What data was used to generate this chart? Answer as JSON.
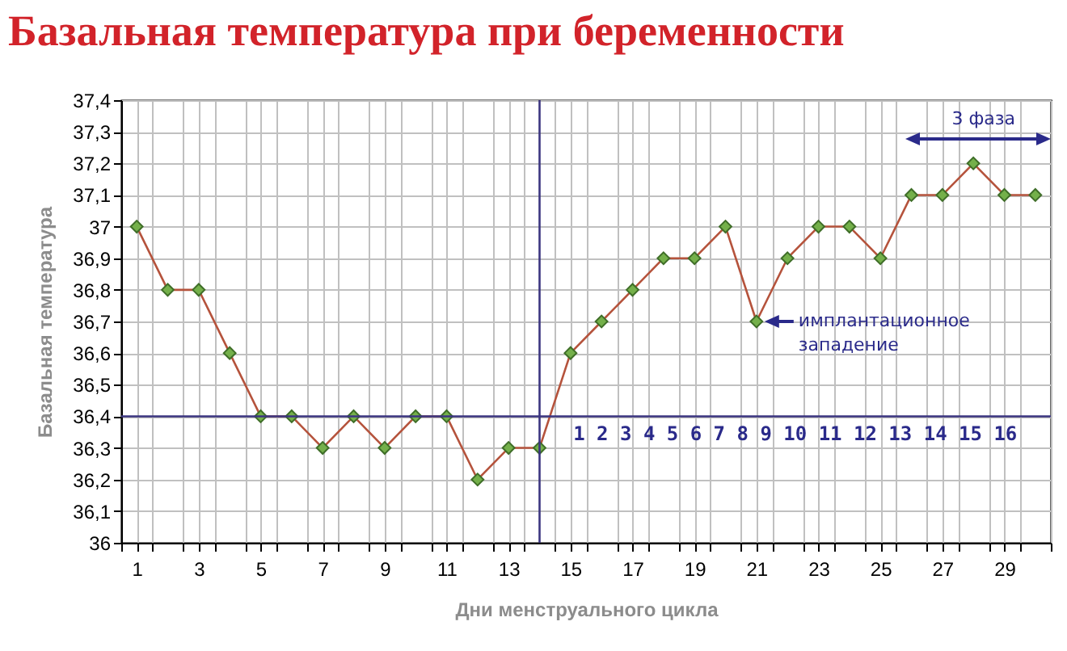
{
  "chart_data": {
    "type": "line",
    "title": "Базальная температура при беременности",
    "xlabel": "Дни менструального цикла",
    "ylabel": "Базальная температура",
    "x": [
      1,
      2,
      3,
      4,
      5,
      6,
      7,
      8,
      9,
      10,
      11,
      12,
      13,
      14,
      15,
      16,
      17,
      18,
      19,
      20,
      21,
      22,
      23,
      24,
      25,
      26,
      27,
      28,
      29,
      30
    ],
    "series": [
      {
        "color": "#b5533c",
        "values": [
          37.0,
          36.8,
          36.8,
          36.6,
          36.4,
          36.4,
          36.3,
          36.4,
          36.3,
          36.4,
          36.4,
          36.2,
          36.3,
          36.3,
          36.6,
          36.7,
          36.8,
          36.9,
          36.9,
          37.0,
          36.7,
          36.9,
          37.0,
          37.0,
          36.9,
          37.1,
          37.1,
          37.2,
          37.1,
          37.1
        ]
      }
    ],
    "xlim": [
      0.5,
      30.5
    ],
    "xticks": [
      {
        "value": 0.5,
        "label": null
      },
      1,
      {
        "value": 1.5,
        "label": null
      },
      {
        "value": 2.5,
        "label": null
      },
      3,
      {
        "value": 3.5,
        "label": null
      },
      {
        "value": 4.5,
        "label": null
      },
      5,
      {
        "value": 5.5,
        "label": null
      },
      {
        "value": 6.5,
        "label": null
      },
      7,
      {
        "value": 7.5,
        "label": null
      },
      {
        "value": 8.5,
        "label": null
      },
      9,
      {
        "value": 9.5,
        "label": null
      },
      {
        "value": 10.5,
        "label": null
      },
      11,
      {
        "value": 11.5,
        "label": null
      },
      {
        "value": 12.5,
        "label": null
      },
      13,
      {
        "value": 13.5,
        "label": null
      },
      {
        "value": 14.5,
        "label": null
      },
      15,
      {
        "value": 15.5,
        "label": null
      },
      {
        "value": 16.5,
        "label": null
      },
      17,
      {
        "value": 17.5,
        "label": null
      },
      {
        "value": 18.5,
        "label": null
      },
      19,
      {
        "value": 19.5,
        "label": null
      },
      {
        "value": 20.5,
        "label": null
      },
      21,
      {
        "value": 21.5,
        "label": null
      },
      {
        "value": 22.5,
        "label": null
      },
      23,
      {
        "value": 23.5,
        "label": null
      },
      {
        "value": 24.5,
        "label": null
      },
      25,
      {
        "value": 25.5,
        "label": null
      },
      {
        "value": 26.5,
        "label": null
      },
      27,
      {
        "value": 27.5,
        "label": null
      },
      {
        "value": 28.5,
        "label": null
      },
      29,
      {
        "value": 29.5,
        "label": null
      },
      {
        "value": 30.5,
        "label": null
      }
    ],
    "ylim": [
      36,
      37.4
    ],
    "yticks": [
      36,
      {
        "value": 36.1,
        "label": "36,1"
      },
      {
        "value": 36.2,
        "label": "36,2"
      },
      {
        "value": 36.3,
        "label": "36,3"
      },
      {
        "value": 36.4,
        "label": "36,4"
      },
      {
        "value": 36.5,
        "label": "36,5"
      },
      {
        "value": 36.6,
        "label": "36,6"
      },
      {
        "value": 36.7,
        "label": "36,7"
      },
      {
        "value": 36.8,
        "label": "36,8"
      },
      {
        "value": 36.9,
        "label": "36,9"
      },
      37,
      {
        "value": 37.1,
        "label": "37,1"
      },
      {
        "value": 37.2,
        "label": "37,2"
      },
      {
        "value": 37.3,
        "label": "37,3"
      },
      {
        "value": 37.4,
        "label": "37,4"
      }
    ],
    "grid": true,
    "marker": "diamond",
    "line_style": "solid",
    "ref_lines": [
      {
        "axis": "x",
        "value": 14,
        "color": "#3b3580"
      },
      {
        "axis": "y",
        "value": 36.4,
        "color": "#3b3580"
      }
    ],
    "annotations": [
      "3 фаза",
      {
        "text": "имплантационное\nзападение",
        "x": 21,
        "y": 36.7
      },
      "1 2 3 4 5 6 7 8 9 10 11 12 13 14 15 16"
    ]
  }
}
